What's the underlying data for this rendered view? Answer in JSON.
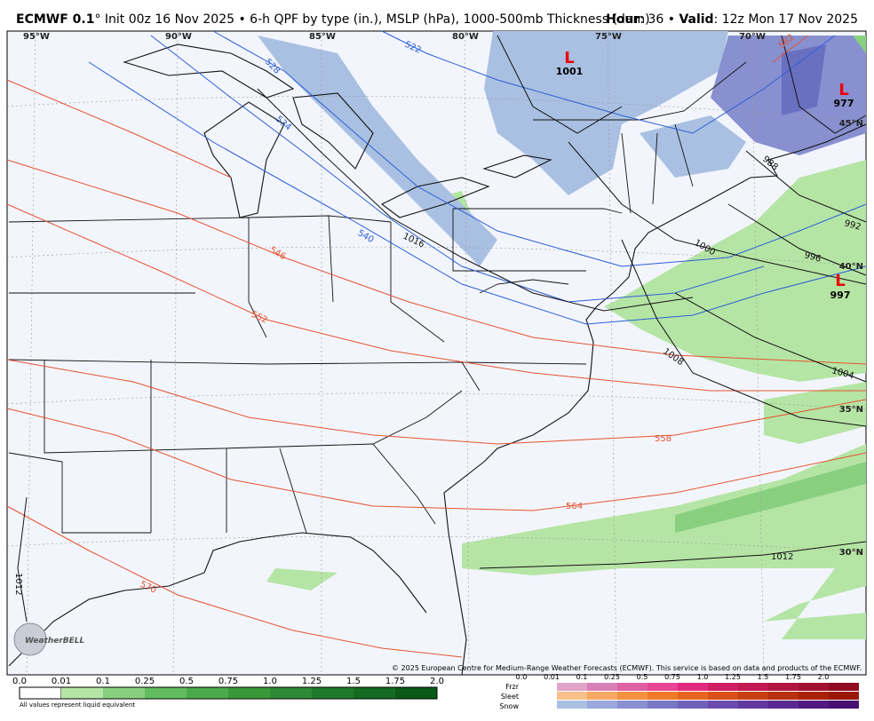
{
  "header": {
    "model": "ECMWF 0.1",
    "description": "° Init 00z 16 Nov 2025 • 6-h QPF by type (in.), MSLP (hPa), 1000-500mb Thickness (dam)",
    "hour_label": "Hour",
    "hour_value": ": 36 • ",
    "valid_label": "Valid",
    "valid_value": ": 12z Mon 17 Nov 2025"
  },
  "map": {
    "longitude_labels": [
      "95°W",
      "90°W",
      "85°W",
      "80°W",
      "75°W",
      "70°W"
    ],
    "latitude_labels": [
      "45°N",
      "40°N",
      "35°N",
      "30°N"
    ],
    "pressure_centers": [
      {
        "symbol": "L",
        "value": "1001"
      },
      {
        "symbol": "L",
        "value": "977"
      },
      {
        "symbol": "L",
        "value": "997"
      }
    ],
    "isobar_labels": [
      "1016",
      "1000",
      "992",
      "996",
      "1008",
      "1004",
      "1012",
      "1012",
      "988"
    ],
    "thickness_labels": [
      "522",
      "528",
      "534",
      "540",
      "546",
      "552",
      "558",
      "564",
      "570",
      "582"
    ],
    "logo": "WeatherBELL",
    "credit": "© 2025 European Centre for Medium-Range Weather Forecasts (ECMWF). This service is based on data and products of the ECMWF."
  },
  "legend": {
    "rain_scale": [
      "0.0",
      "0.01",
      "0.1",
      "0.25",
      "0.5",
      "0.75",
      "1.0",
      "1.25",
      "1.5",
      "1.75",
      "2.0"
    ],
    "note": "All values represent liquid equivalent",
    "types": [
      "Frzr",
      "Sleet",
      "Snow"
    ],
    "mixed_scale": [
      "0.0",
      "0.01",
      "0.1",
      "0.25",
      "0.5",
      "0.75",
      "1.0",
      "1.25",
      "1.5",
      "1.75",
      "2.0"
    ]
  }
}
